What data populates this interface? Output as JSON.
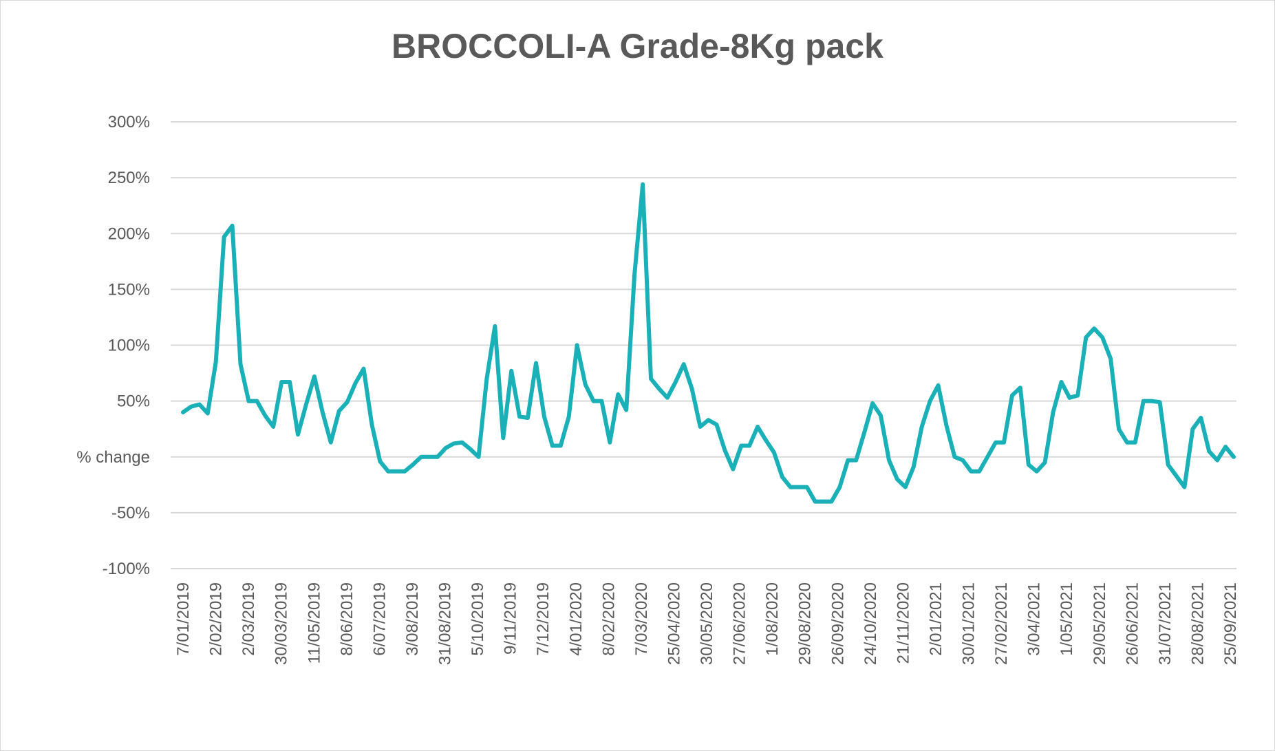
{
  "chart_data": {
    "type": "line",
    "title": "BROCCOLI-A Grade-8Kg pack",
    "xlabel": "",
    "ylabel": "",
    "ylim": [
      -100,
      300
    ],
    "grid": true,
    "legend": "none",
    "y_ticks": [
      "300%",
      "250%",
      "200%",
      "150%",
      "100%",
      "50%",
      "% change",
      "-50%",
      "-100%"
    ],
    "y_tick_values": [
      300,
      250,
      200,
      150,
      100,
      50,
      0,
      -50,
      -100
    ],
    "x_tick_labels": [
      "7/01/2019",
      "2/02/2019",
      "2/03/2019",
      "30/03/2019",
      "11/05/2019",
      "8/06/2019",
      "6/07/2019",
      "3/08/2019",
      "31/08/2019",
      "5/10/2019",
      "9/11/2019",
      "7/12/2019",
      "4/01/2020",
      "8/02/2020",
      "7/03/2020",
      "25/04/2020",
      "30/05/2020",
      "27/06/2020",
      "1/08/2020",
      "29/08/2020",
      "26/09/2020",
      "24/10/2020",
      "21/11/2020",
      "2/01/2021",
      "30/01/2021",
      "27/02/2021",
      "3/04/2021",
      "1/05/2021",
      "29/05/2021",
      "26/06/2021",
      "31/07/2021",
      "28/08/2021",
      "25/09/2021"
    ],
    "color": "#1ab0b8",
    "series": [
      {
        "values": [
          40,
          45,
          47,
          39,
          85,
          197,
          207,
          83,
          50,
          50,
          37,
          27,
          67,
          67,
          20,
          47,
          72,
          40,
          13,
          41,
          49,
          66,
          79,
          29,
          -4,
          -13,
          -13,
          -13,
          -7,
          0,
          0,
          0,
          8,
          12,
          13,
          7,
          0,
          70,
          117,
          17,
          77,
          36,
          35,
          84,
          36,
          10,
          10,
          36,
          100,
          65,
          50,
          50,
          13,
          56,
          42,
          163,
          244,
          70,
          61,
          53,
          67,
          83,
          61,
          27,
          33,
          29,
          6,
          -11,
          10,
          10,
          27,
          15,
          4,
          -18,
          -27,
          -27,
          -27,
          -40,
          -40,
          -40,
          -27,
          -3,
          -3,
          22,
          48,
          37,
          -3,
          -20,
          -27,
          -9,
          27,
          50,
          64,
          28,
          0,
          -3,
          -13,
          -13,
          0,
          13,
          13,
          55,
          62,
          -7,
          -13,
          -5,
          40,
          67,
          53,
          55,
          107,
          115,
          107,
          88,
          25,
          13,
          13,
          50,
          50,
          49,
          -7,
          -17,
          -27,
          25,
          35,
          5,
          -3,
          9,
          0
        ]
      }
    ]
  }
}
